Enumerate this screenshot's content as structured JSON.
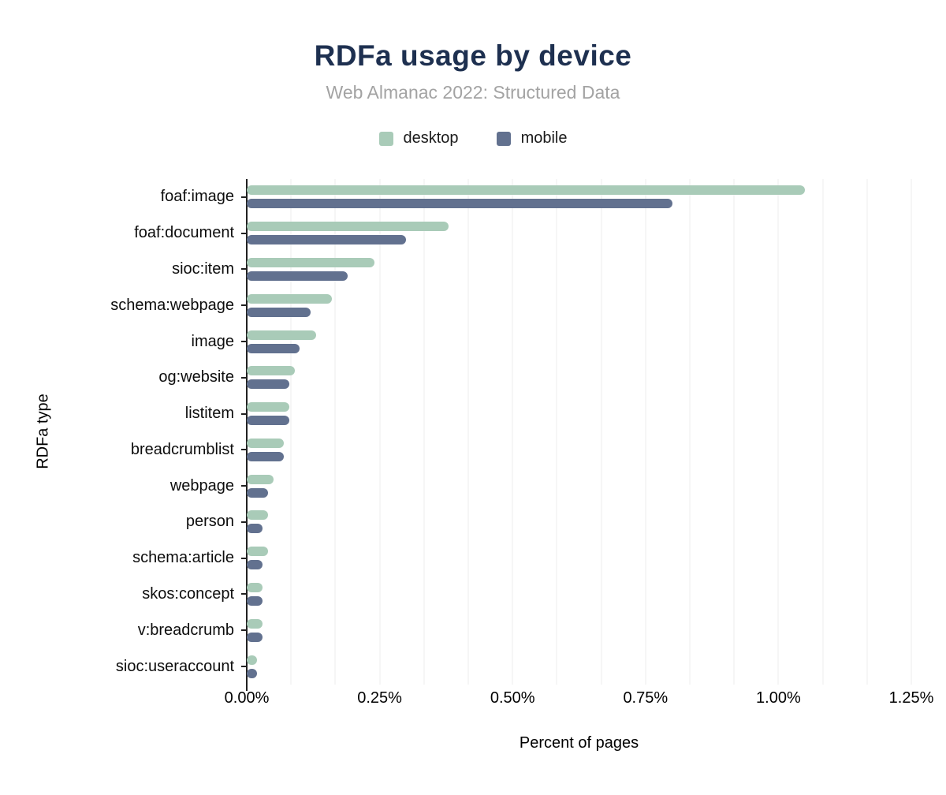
{
  "title": "RDFa usage by device",
  "subtitle": "Web Almanac 2022: Structured Data",
  "legend": [
    {
      "label": "desktop",
      "color": "#a9cbb8"
    },
    {
      "label": "mobile",
      "color": "#62718f"
    }
  ],
  "colors": {
    "title": "#1e3050",
    "subtitle": "#a3a3a3",
    "desktop_bar": "#a9cbb8",
    "mobile_bar": "#62718f",
    "gridline": "#ededed",
    "axis": "#212121",
    "background": "#ffffff"
  },
  "chart_data": {
    "type": "bar",
    "orientation": "horizontal",
    "title": "RDFa usage by device",
    "subtitle": "Web Almanac 2022: Structured Data",
    "xlabel": "Percent of pages",
    "ylabel": "RDFa type",
    "xlim": [
      0,
      1.25
    ],
    "x_ticks": [
      "0.00%",
      "0.25%",
      "0.50%",
      "0.75%",
      "1.00%",
      "1.25%"
    ],
    "x_tick_values": [
      0,
      0.25,
      0.5,
      0.75,
      1.0,
      1.25
    ],
    "minor_gridline_count": 15,
    "grid": "vertical-minor-on",
    "legend_position": "top",
    "value_unit": "%",
    "categories": [
      "foaf:image",
      "foaf:document",
      "sioc:item",
      "schema:webpage",
      "image",
      "og:website",
      "listitem",
      "breadcrumblist",
      "webpage",
      "person",
      "schema:article",
      "skos:concept",
      "v:breadcrumb",
      "sioc:useraccount"
    ],
    "series": [
      {
        "name": "desktop",
        "color": "#a9cbb8",
        "values": [
          1.05,
          0.38,
          0.24,
          0.16,
          0.13,
          0.09,
          0.08,
          0.07,
          0.05,
          0.04,
          0.04,
          0.03,
          0.03,
          0.02
        ]
      },
      {
        "name": "mobile",
        "color": "#62718f",
        "values": [
          0.8,
          0.3,
          0.19,
          0.12,
          0.1,
          0.08,
          0.08,
          0.07,
          0.04,
          0.03,
          0.03,
          0.03,
          0.03,
          0.02
        ]
      }
    ]
  }
}
